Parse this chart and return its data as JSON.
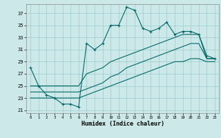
{
  "xlabel": "Humidex (Indice chaleur)",
  "bg_color": "#cce8e8",
  "grid_color": "#99cccc",
  "line_color": "#006666",
  "xlim": [
    -0.5,
    23.5
  ],
  "ylim": [
    20.5,
    38.5
  ],
  "yticks": [
    21,
    23,
    25,
    27,
    29,
    31,
    33,
    35,
    37
  ],
  "xticks": [
    0,
    1,
    2,
    3,
    4,
    5,
    6,
    7,
    8,
    9,
    10,
    11,
    12,
    13,
    14,
    15,
    16,
    17,
    18,
    19,
    20,
    21,
    22,
    23
  ],
  "series1_x": [
    0,
    1,
    2,
    3,
    4,
    5,
    6,
    7,
    8,
    9,
    10,
    11,
    12,
    13,
    14,
    15,
    16,
    17,
    18,
    19,
    20,
    21,
    22,
    23
  ],
  "series1_y": [
    28,
    25,
    23.5,
    23,
    22,
    22,
    21.5,
    32,
    31,
    32,
    35,
    35,
    38,
    37.5,
    34.5,
    34,
    34.5,
    35.5,
    33.5,
    34,
    34,
    33.5,
    30,
    29.5
  ],
  "series2_x": [
    0,
    1,
    2,
    3,
    4,
    5,
    6,
    7,
    8,
    9,
    10,
    11,
    12,
    13,
    14,
    15,
    16,
    17,
    18,
    19,
    20,
    21,
    22,
    23
  ],
  "series2_y": [
    25,
    25,
    25,
    25,
    25,
    25,
    25,
    27,
    27.5,
    28,
    29,
    29.5,
    30,
    30.5,
    31,
    31.5,
    32,
    32.5,
    33,
    33.5,
    33.5,
    33.5,
    29.5,
    29.5
  ],
  "series3_x": [
    0,
    1,
    2,
    3,
    4,
    5,
    6,
    7,
    8,
    9,
    10,
    11,
    12,
    13,
    14,
    15,
    16,
    17,
    18,
    19,
    20,
    21,
    22,
    23
  ],
  "series3_y": [
    24,
    24,
    24,
    24,
    24,
    24,
    24,
    24.5,
    25,
    25.5,
    26.5,
    27,
    28,
    28.5,
    29,
    29.5,
    30,
    30.5,
    31,
    31.5,
    32,
    32,
    29.5,
    29.5
  ],
  "series4_x": [
    0,
    1,
    2,
    3,
    4,
    5,
    6,
    7,
    8,
    9,
    10,
    11,
    12,
    13,
    14,
    15,
    16,
    17,
    18,
    19,
    20,
    21,
    22,
    23
  ],
  "series4_y": [
    23,
    23,
    23,
    23,
    23,
    23,
    23,
    23.5,
    24,
    24.5,
    25,
    25.5,
    26,
    26.5,
    27,
    27.5,
    28,
    28.5,
    29,
    29,
    29.5,
    29.5,
    29,
    29
  ]
}
